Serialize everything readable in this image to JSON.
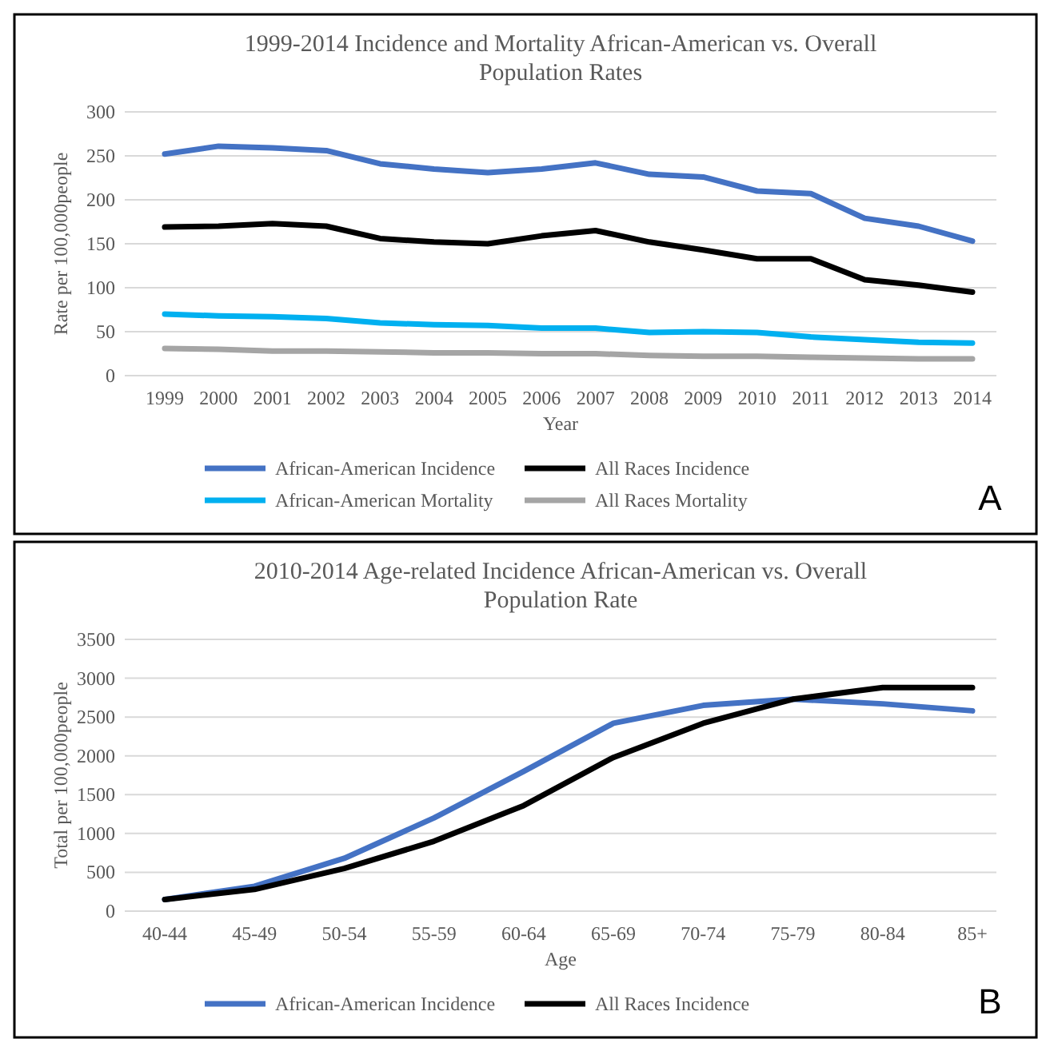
{
  "chart_data": [
    {
      "type": "line",
      "title": "1999-2014 Incidence and Mortality African-American vs. Overall Population Rates",
      "xlabel": "Year",
      "ylabel": "Rate per 100,000people",
      "categories": [
        "1999",
        "2000",
        "2001",
        "2002",
        "2003",
        "2004",
        "2005",
        "2006",
        "2007",
        "2008",
        "2009",
        "2010",
        "2011",
        "2012",
        "2013",
        "2014"
      ],
      "series": [
        {
          "name": "African-American Incidence",
          "color": "#4472c4",
          "values": [
            252,
            261,
            259,
            256,
            241,
            235,
            231,
            235,
            242,
            229,
            226,
            210,
            207,
            179,
            170,
            153
          ]
        },
        {
          "name": "All Races Incidence",
          "color": "#000000",
          "values": [
            169,
            170,
            173,
            170,
            156,
            152,
            150,
            159,
            165,
            152,
            143,
            133,
            133,
            109,
            103,
            95
          ]
        },
        {
          "name": "African-American Mortality",
          "color": "#00b0f0",
          "values": [
            70,
            68,
            67,
            65,
            60,
            58,
            57,
            54,
            54,
            49,
            50,
            49,
            44,
            41,
            38,
            37
          ]
        },
        {
          "name": "All Races Mortality",
          "color": "#a5a5a5",
          "values": [
            31,
            30,
            28,
            28,
            27,
            26,
            26,
            25,
            25,
            23,
            22,
            22,
            21,
            20,
            19,
            19
          ]
        }
      ],
      "ylim": [
        0,
        300
      ],
      "yticks": [
        0,
        50,
        100,
        150,
        200,
        250,
        300
      ],
      "grid": "y",
      "legend": "bottom",
      "marker": "none",
      "line_style": "solid",
      "annotations": [
        "A"
      ]
    },
    {
      "type": "line",
      "title": "2010-2014 Age-related Incidence African-American vs. Overall Population Rate",
      "xlabel": "Age",
      "ylabel": "Total per 100,000people",
      "categories": [
        "40-44",
        "45-49",
        "50-54",
        "55-59",
        "60-64",
        "65-69",
        "70-74",
        "75-79",
        "80-84",
        "85+"
      ],
      "series": [
        {
          "name": "African-American Incidence",
          "color": "#4472c4",
          "values": [
            150,
            320,
            680,
            1200,
            1800,
            2420,
            2650,
            2730,
            2670,
            2580
          ]
        },
        {
          "name": "All Races Incidence",
          "color": "#000000",
          "values": [
            150,
            280,
            550,
            900,
            1360,
            1980,
            2420,
            2730,
            2880,
            2880
          ]
        }
      ],
      "ylim": [
        0,
        3500
      ],
      "yticks": [
        0,
        500,
        1000,
        1500,
        2000,
        2500,
        3000,
        3500
      ],
      "grid": "y",
      "legend": "bottom",
      "marker": "none",
      "line_style": "solid",
      "annotations": [
        "B"
      ]
    }
  ]
}
